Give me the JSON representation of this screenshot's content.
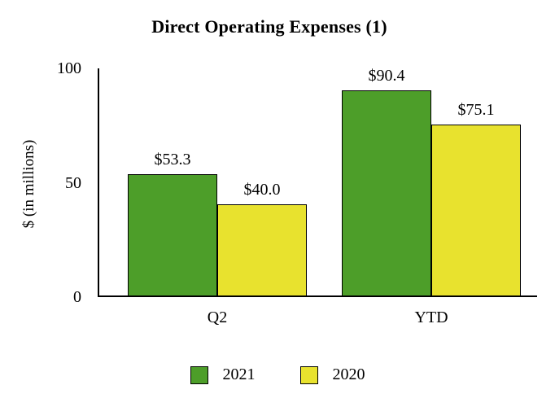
{
  "chart_data": {
    "type": "bar",
    "title": "Direct Operating Expenses (1)",
    "ylabel": "$ (in millions)",
    "xlabel": "",
    "categories": [
      "Q2",
      "YTD"
    ],
    "series": [
      {
        "name": "2021",
        "color": "#4d9e29",
        "values": [
          53.3,
          90.4
        ],
        "labels": [
          "$53.3",
          "$90.4"
        ]
      },
      {
        "name": "2020",
        "color": "#e8e22e",
        "values": [
          40.0,
          75.1
        ],
        "labels": [
          "$40.0",
          "$75.1"
        ]
      }
    ],
    "ylim": [
      0,
      100
    ],
    "yticks": [
      0,
      50,
      100
    ],
    "grid": false,
    "legend_position": "bottom"
  }
}
